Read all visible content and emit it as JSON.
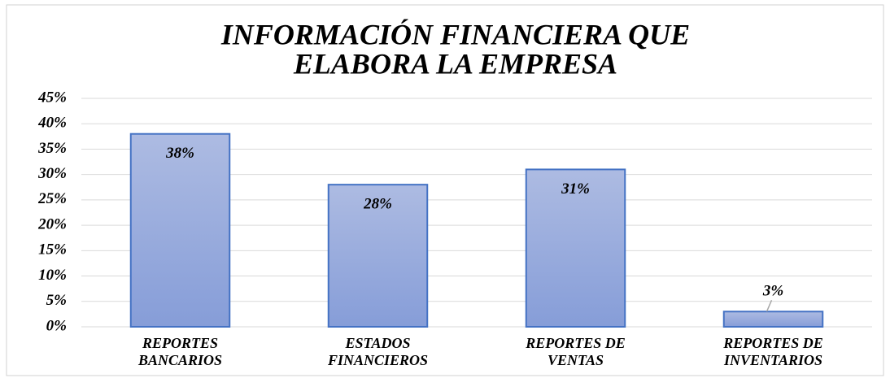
{
  "chart_data": {
    "type": "bar",
    "title": [
      "INFORMACIÓN FINANCIERA QUE",
      "ELABORA LA EMPRESA"
    ],
    "categories": [
      [
        "REPORTES",
        "BANCARIOS"
      ],
      [
        "ESTADOS",
        "FINANCIEROS"
      ],
      [
        "REPORTES DE",
        "VENTAS"
      ],
      [
        "REPORTES DE",
        "INVENTARIOS"
      ]
    ],
    "values": [
      38,
      28,
      31,
      3
    ],
    "value_labels": [
      "38%",
      "28%",
      "31%",
      "3%"
    ],
    "color": "#4472c4",
    "ylim": [
      0,
      45
    ],
    "yticks": [
      {
        "value": 0,
        "label": "0%"
      },
      {
        "value": 5,
        "label": "5%"
      },
      {
        "value": 10,
        "label": "10%"
      },
      {
        "value": 15,
        "label": "15%"
      },
      {
        "value": 20,
        "label": "20%"
      },
      {
        "value": 25,
        "label": "25%"
      },
      {
        "value": 30,
        "label": "30%"
      },
      {
        "value": 35,
        "label": "35%"
      },
      {
        "value": 40,
        "label": "40%"
      },
      {
        "value": 45,
        "label": "45%"
      }
    ],
    "grid": true
  }
}
